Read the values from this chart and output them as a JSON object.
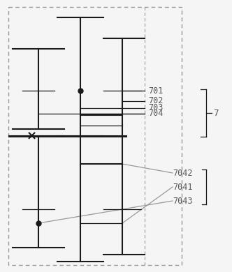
{
  "bg_color": "#f5f5f5",
  "line_color": "#1a1a1a",
  "label_color": "#555555",
  "dashed_color": "#999999",
  "fig_width": 3.32,
  "fig_height": 3.9,
  "labels_top": [
    "701",
    "702",
    "703",
    "704"
  ],
  "labels_bottom": [
    "7042",
    "7041",
    "7043"
  ],
  "brace_label": "7"
}
